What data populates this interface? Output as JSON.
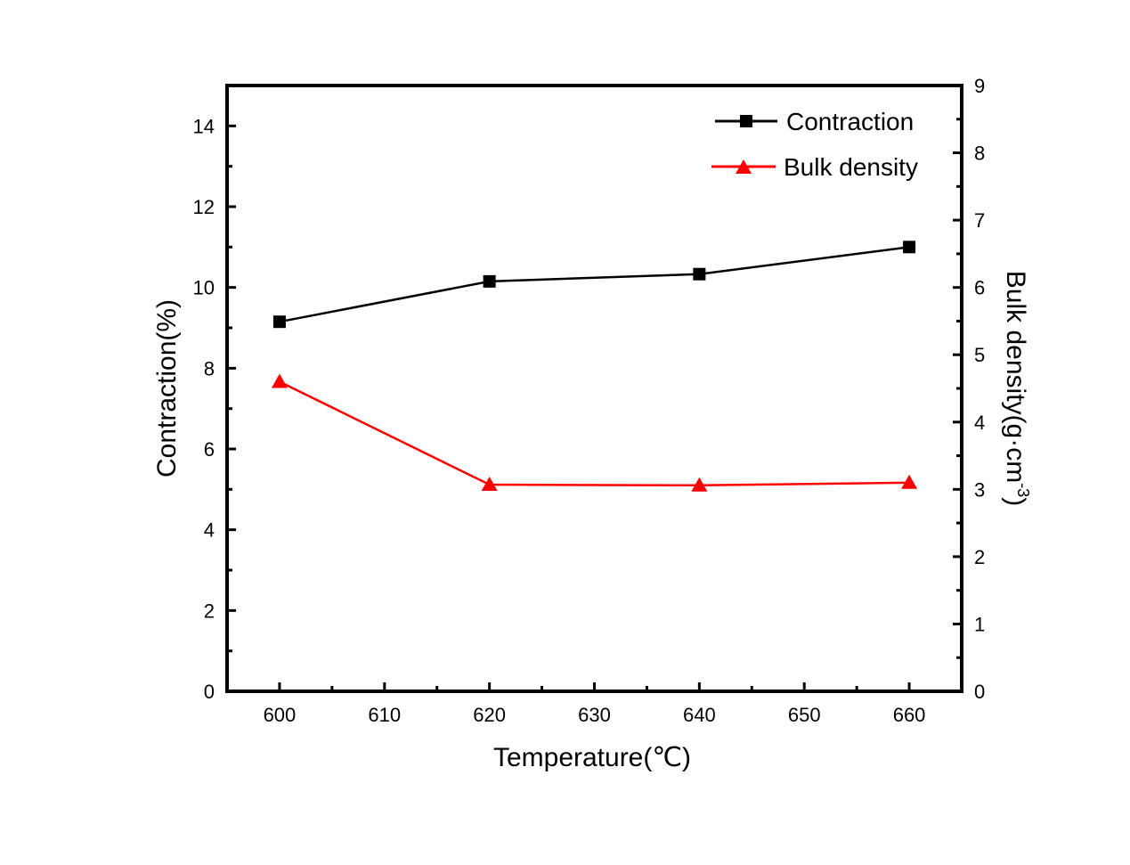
{
  "chart_data": {
    "type": "line",
    "title": "",
    "xlabel": "Temperature(℃)",
    "ylabel": "Contraction(%)",
    "ylabel_right_main": "Bulk density(g·cm",
    "ylabel_right_sup": "-3",
    "ylabel_right_close": ")",
    "xlim": [
      595,
      665
    ],
    "ylim": [
      0,
      15
    ],
    "ylim_right": [
      0,
      9
    ],
    "x_ticks": [
      600,
      610,
      620,
      630,
      640,
      650,
      660
    ],
    "x_tick_labels": [
      "600",
      "610",
      "620",
      "630",
      "640",
      "650",
      "660"
    ],
    "y_ticks": [
      0,
      2,
      4,
      6,
      8,
      10,
      12,
      14
    ],
    "y_tick_labels": [
      "0",
      "2",
      "4",
      "6",
      "8",
      "10",
      "12",
      "14"
    ],
    "y_right_ticks": [
      0,
      1,
      2,
      3,
      4,
      5,
      6,
      7,
      8,
      9
    ],
    "y_right_tick_labels": [
      "0",
      "1",
      "2",
      "3",
      "4",
      "5",
      "6",
      "7",
      "8",
      "9"
    ],
    "grid": false,
    "legend_position": "top-right",
    "x": [
      600,
      620,
      640,
      660
    ],
    "series": [
      {
        "name": "Contraction",
        "axis": "left",
        "marker": "square",
        "color": "#000000",
        "values": [
          9.15,
          10.15,
          10.33,
          11.0
        ]
      },
      {
        "name": "Bulk density",
        "axis": "right",
        "marker": "triangle",
        "color": "#ff0000",
        "values": [
          4.6,
          3.07,
          3.06,
          3.1
        ]
      }
    ]
  }
}
